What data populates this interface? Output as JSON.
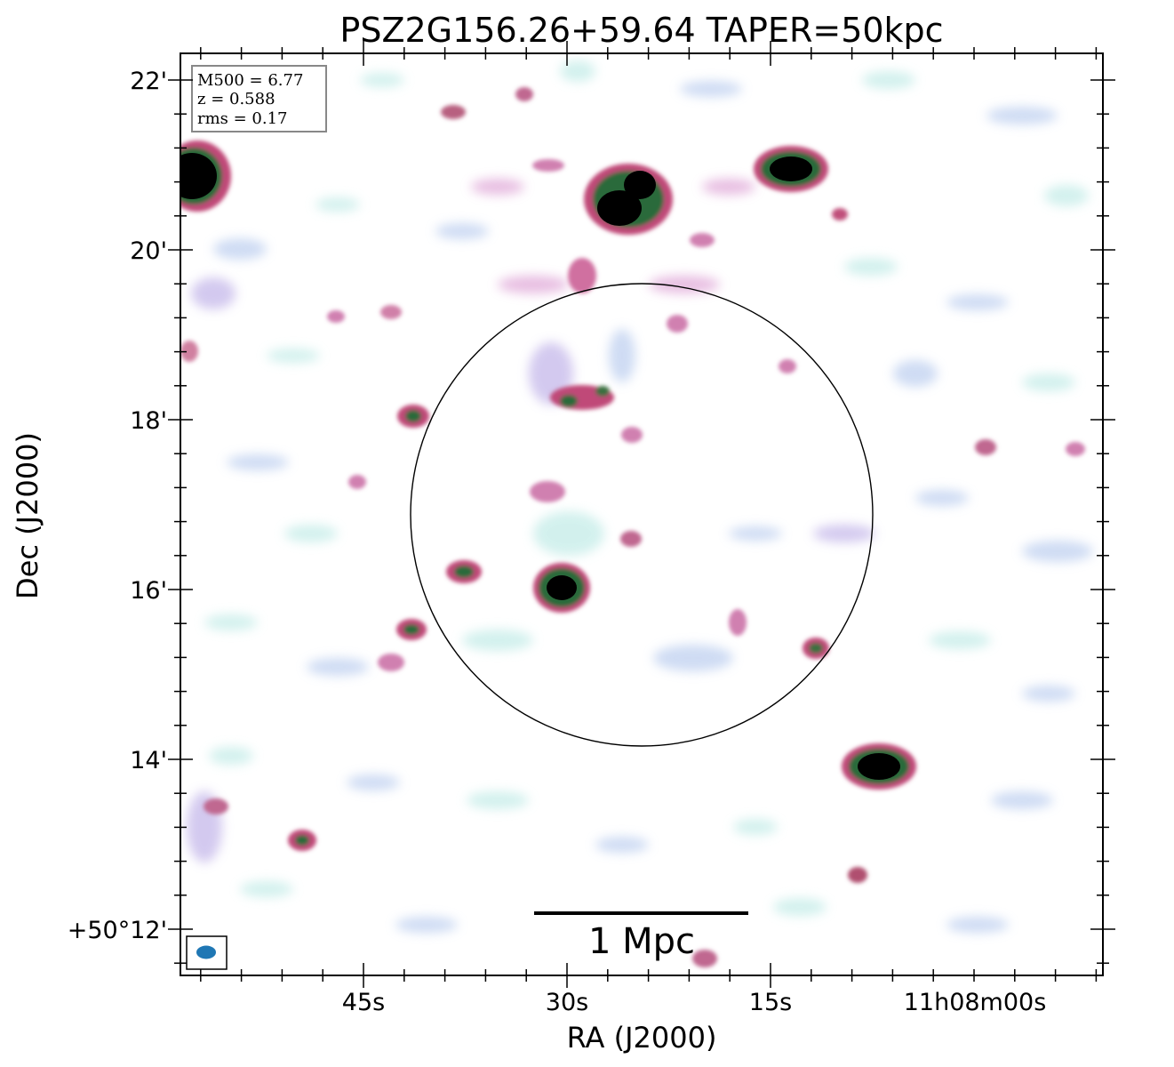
{
  "title": "PSZ2G156.26+59.64 TAPER=50kpc",
  "xlabel": "RA (J2000)",
  "ylabel": "Dec (J2000)",
  "x_ticks": [
    "45s",
    "30s",
    "15s",
    "11h08m00s"
  ],
  "y_ticks": [
    "22'",
    "20'",
    "18'",
    "16'",
    "14'",
    "+50°12'"
  ],
  "info_box": {
    "m500": "M500 = 6.77",
    "z": "z = 0.588",
    "rms": "rms = 0.17"
  },
  "scale_bar_label": "1 Mpc",
  "colors": {
    "beam": "#1f77b4",
    "circle": "#000000",
    "background": "#ffffff"
  }
}
